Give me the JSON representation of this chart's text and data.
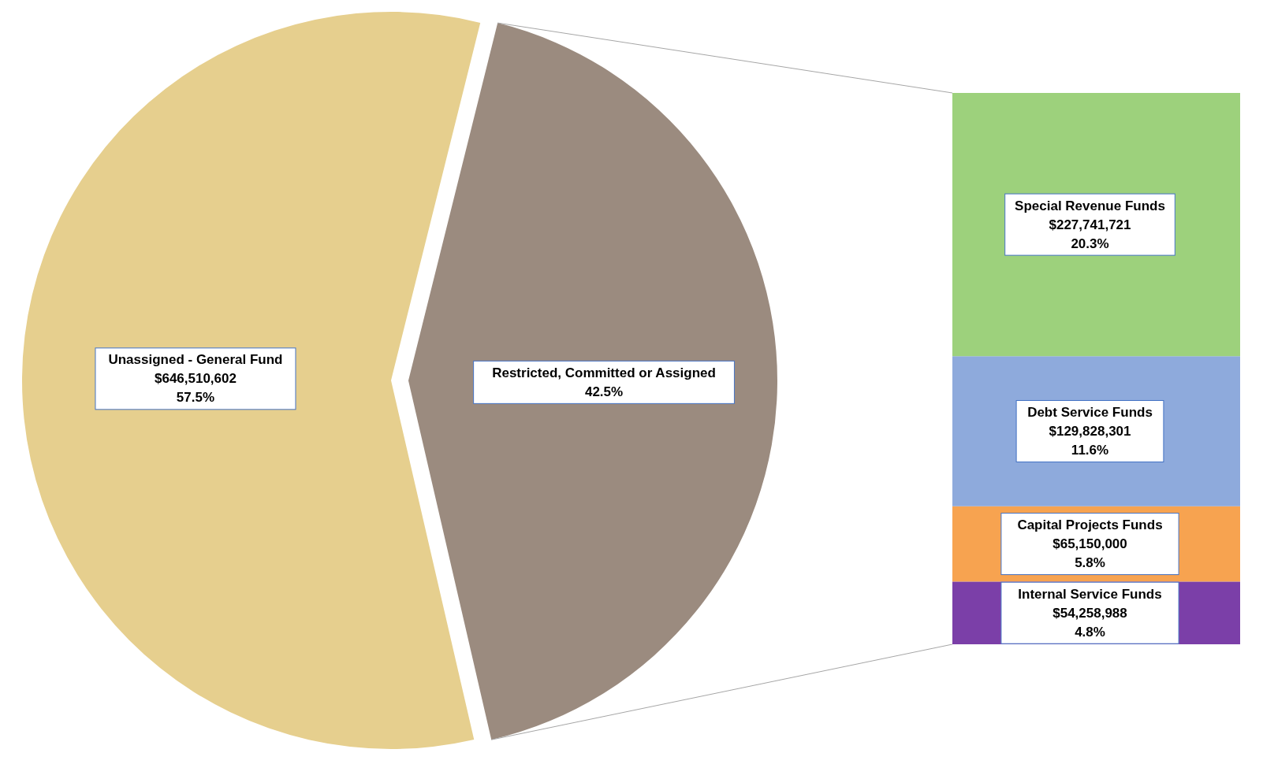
{
  "chart_data": [
    {
      "type": "pie",
      "categories": [
        "Unassigned - General Fund",
        "Restricted, Committed or Assigned"
      ],
      "values": [
        57.5,
        42.5
      ],
      "colors": [
        "#e6cf8e",
        "#9b8b7f"
      ],
      "value_labels": [
        "$646,510,602\n57.5%",
        "42.5%"
      ]
    },
    {
      "type": "bar",
      "stacked": true,
      "categories": [
        null
      ],
      "series": [
        {
          "name": "Internal Service Funds",
          "color": "#7b3fa8",
          "values": [
            54258988
          ],
          "value_labels": [
            "$54,258,988\n4.8%"
          ]
        },
        {
          "name": "Capital Projects Funds",
          "color": "#f7a350",
          "values": [
            65150000
          ],
          "value_labels": [
            "$65,150,000\n5.8%"
          ]
        },
        {
          "name": "Debt Service Funds",
          "color": "#8eaadc",
          "values": [
            129828301
          ],
          "value_labels": [
            "$129,828,301\n11.6%"
          ]
        },
        {
          "name": "Special Revenue Funds",
          "color": "#9dd17c",
          "values": [
            227741721
          ],
          "value_labels": [
            "$227,741,721\n20.3%"
          ]
        }
      ]
    }
  ]
}
